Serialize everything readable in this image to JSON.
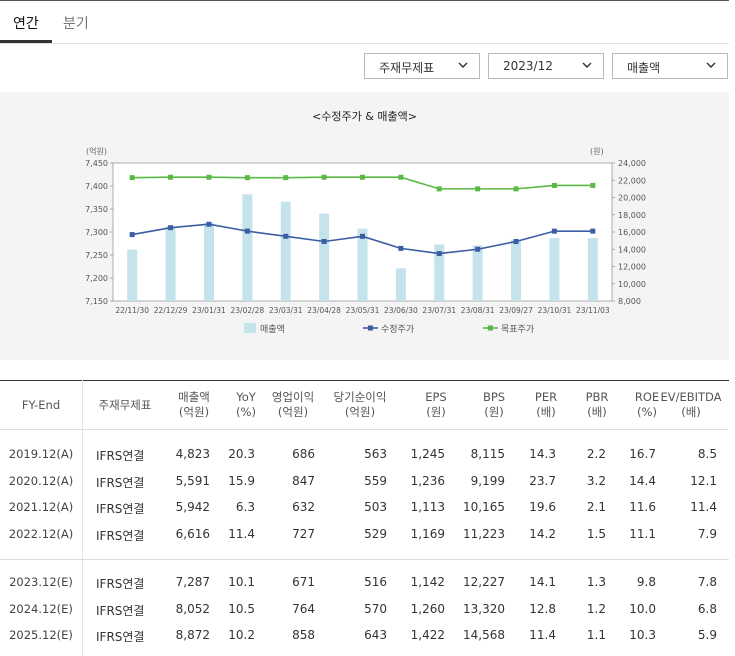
{
  "tabs": [
    {
      "label": "연간",
      "active": true
    },
    {
      "label": "분기",
      "active": false
    }
  ],
  "filters": [
    {
      "label": "주재무제표"
    },
    {
      "label": "2023/12"
    },
    {
      "label": "매출액"
    }
  ],
  "chart_data": {
    "type": "bar+line",
    "title": "<수정주가 & 매출액>",
    "left_axis_unit": "(억원)",
    "right_axis_unit": "(원)",
    "left_ylim": [
      7150,
      7450
    ],
    "left_ticks": [
      "7,450",
      "7,400",
      "7,350",
      "7,300",
      "7,250",
      "7,200",
      "7,150"
    ],
    "right_ylim": [
      8000,
      24000
    ],
    "right_ticks": [
      "24,000",
      "22,000",
      "20,000",
      "18,000",
      "16,000",
      "14,000",
      "12,000",
      "10,000",
      "8,000"
    ],
    "categories": [
      "22/11/30",
      "22/12/29",
      "23/01/31",
      "23/02/28",
      "23/03/31",
      "23/04/28",
      "23/05/31",
      "23/06/30",
      "23/07/31",
      "23/08/31",
      "23/09/27",
      "23/10/31",
      "23/11/03"
    ],
    "series": [
      {
        "name": "매출액",
        "kind": "bar",
        "axis": "left",
        "color": "#c5e3ea",
        "values": [
          7262,
          7312,
          7320,
          7382,
          7366,
          7340,
          7307,
          7221,
          7273,
          7271,
          7283,
          7287,
          7287
        ]
      },
      {
        "name": "수정주가",
        "kind": "line",
        "axis": "right",
        "color": "#3a5da3",
        "values": [
          15700,
          16500,
          16900,
          16100,
          15500,
          14900,
          15500,
          14100,
          13500,
          14000,
          14900,
          16100,
          16100
        ]
      },
      {
        "name": "목표주가",
        "kind": "line",
        "axis": "right",
        "color": "#5ab944",
        "values": [
          22300,
          22350,
          22350,
          22300,
          22300,
          22350,
          22350,
          22350,
          21000,
          21000,
          21000,
          21400,
          21400
        ]
      }
    ],
    "legend_position": "bottom"
  },
  "table": {
    "headers": [
      {
        "l1": "FY-End",
        "l2": ""
      },
      {
        "l1": "주재무제표",
        "l2": ""
      },
      {
        "l1": "매출액",
        "l2": "(억원)"
      },
      {
        "l1": "YoY",
        "l2": "(%)"
      },
      {
        "l1": "영업이익",
        "l2": "(억원)"
      },
      {
        "l1": "당기순이익",
        "l2": "(억원)"
      },
      {
        "l1": "EPS",
        "l2": "(원)"
      },
      {
        "l1": "BPS",
        "l2": "(원)"
      },
      {
        "l1": "PER",
        "l2": "(배)"
      },
      {
        "l1": "PBR",
        "l2": "(배)"
      },
      {
        "l1": "ROE",
        "l2": "(%)"
      },
      {
        "l1": "EV/EBITDA",
        "l2": "(배)"
      }
    ],
    "rows_actual": [
      [
        "2019.12(A)",
        "IFRS연결",
        "4,823",
        "20.3",
        "686",
        "563",
        "1,245",
        "8,115",
        "14.3",
        "2.2",
        "16.7",
        "8.5"
      ],
      [
        "2020.12(A)",
        "IFRS연결",
        "5,591",
        "15.9",
        "847",
        "559",
        "1,236",
        "9,199",
        "23.7",
        "3.2",
        "14.4",
        "12.1"
      ],
      [
        "2021.12(A)",
        "IFRS연결",
        "5,942",
        "6.3",
        "632",
        "503",
        "1,113",
        "10,165",
        "19.6",
        "2.1",
        "11.6",
        "11.4"
      ],
      [
        "2022.12(A)",
        "IFRS연결",
        "6,616",
        "11.4",
        "727",
        "529",
        "1,169",
        "11,223",
        "14.2",
        "1.5",
        "11.1",
        "7.9"
      ]
    ],
    "rows_estimate": [
      [
        "2023.12(E)",
        "IFRS연결",
        "7,287",
        "10.1",
        "671",
        "516",
        "1,142",
        "12,227",
        "14.1",
        "1.3",
        "9.8",
        "7.8"
      ],
      [
        "2024.12(E)",
        "IFRS연결",
        "8,052",
        "10.5",
        "764",
        "570",
        "1,260",
        "13,320",
        "12.8",
        "1.2",
        "10.0",
        "6.8"
      ],
      [
        "2025.12(E)",
        "IFRS연결",
        "8,872",
        "10.2",
        "858",
        "643",
        "1,422",
        "14,568",
        "11.4",
        "1.1",
        "10.3",
        "5.9"
      ]
    ]
  }
}
